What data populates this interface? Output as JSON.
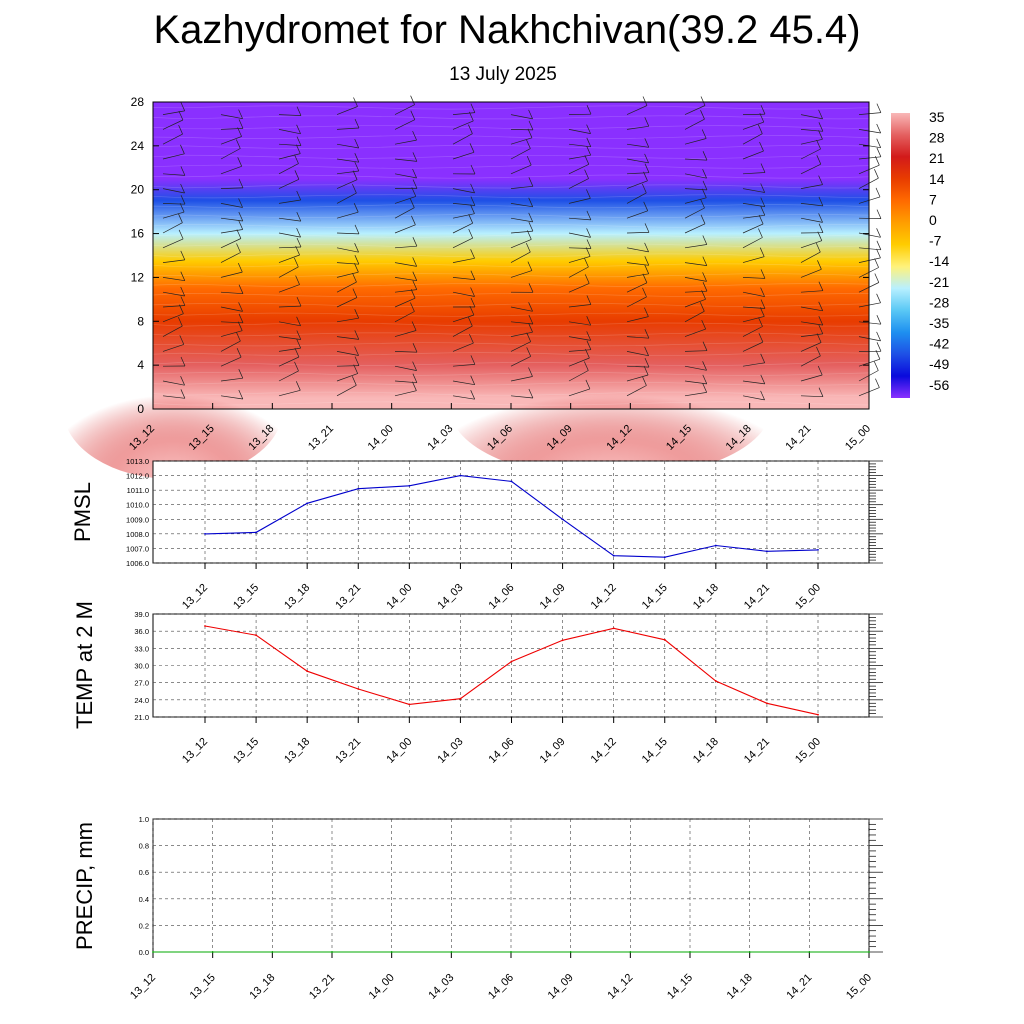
{
  "title": "Kazhydromet for Nakhchivan(39.2 45.4)",
  "subtitle": "13 July 2025",
  "colors": {
    "pmsl_line": "#0000cc",
    "temp_line": "#ee0000",
    "precip_line": "#00aa00",
    "grid": "#444444"
  },
  "chart_data": [
    {
      "type": "heatmap",
      "name": "temperature_cross_section",
      "x": [
        "13_12",
        "13_15",
        "13_18",
        "13_21",
        "14_00",
        "14_03",
        "14_06",
        "14_09",
        "14_12",
        "14_15",
        "14_18",
        "14_21",
        "15_00"
      ],
      "ylim": [
        0,
        28
      ],
      "y_ticks": [
        0,
        4,
        8,
        12,
        16,
        20,
        24,
        28
      ],
      "colorbar_labels": [
        "35",
        "28",
        "21",
        "14",
        "7",
        "0",
        "-7",
        "-14",
        "-21",
        "-28",
        "-35",
        "-42",
        "-49",
        "-56"
      ],
      "colorbar_colors": [
        "#f9b8b8",
        "#e46060",
        "#d21a1a",
        "#e83c00",
        "#ff6a00",
        "#ff9e00",
        "#ffcc00",
        "#fff27a",
        "#b8f0ff",
        "#5ac8f5",
        "#1e90f0",
        "#1e50e6",
        "#0a0adc",
        "#8a30ff"
      ],
      "layers": [
        {
          "height": 1,
          "value": 35
        },
        {
          "height": 4,
          "value": 26
        },
        {
          "height": 8,
          "value": 16
        },
        {
          "height": 11,
          "value": 5
        },
        {
          "height": 13.5,
          "value": -10
        },
        {
          "height": 16,
          "value": -22
        },
        {
          "height": 19,
          "value": -42
        },
        {
          "height": 21,
          "value": -58
        },
        {
          "height": 24,
          "value": -60
        }
      ],
      "wind_barbs": true
    },
    {
      "type": "line",
      "name": "PMSL",
      "ylabel": "PMSL",
      "x": [
        "13_12",
        "13_15",
        "13_18",
        "13_21",
        "14_00",
        "14_03",
        "14_06",
        "14_09",
        "14_12",
        "14_15",
        "14_18",
        "14_21",
        "15_00"
      ],
      "values": [
        1008.0,
        1008.1,
        1010.1,
        1011.1,
        1011.3,
        1012.0,
        1011.6,
        1009.0,
        1006.5,
        1006.4,
        1007.2,
        1006.8,
        1006.9
      ],
      "ylim": [
        1006.0,
        1013.0
      ],
      "y_ticks": [
        "1006.0",
        "1007.0",
        "1008.0",
        "1009.0",
        "1010.0",
        "1011.0",
        "1012.0",
        "1013.0"
      ],
      "grid": true
    },
    {
      "type": "line",
      "name": "TEMP at 2 M",
      "ylabel": "TEMP at 2 M",
      "x": [
        "13_12",
        "13_15",
        "13_18",
        "13_21",
        "14_00",
        "14_03",
        "14_06",
        "14_09",
        "14_12",
        "14_15",
        "14_18",
        "14_21",
        "15_00"
      ],
      "values": [
        36.9,
        35.3,
        29.0,
        25.9,
        23.2,
        24.2,
        30.7,
        34.4,
        36.5,
        34.5,
        27.3,
        23.4,
        21.4
      ],
      "ylim": [
        21.0,
        39.0
      ],
      "y_ticks": [
        "21.0",
        "24.0",
        "27.0",
        "30.0",
        "33.0",
        "36.0",
        "39.0"
      ],
      "grid": true
    },
    {
      "type": "line",
      "name": "PRECIP, mm",
      "ylabel": "PRECIP, mm",
      "x": [
        "13_12",
        "13_15",
        "13_18",
        "13_21",
        "14_00",
        "14_03",
        "14_06",
        "14_09",
        "14_12",
        "14_15",
        "14_18",
        "14_21",
        "15_00"
      ],
      "values": [
        0,
        0,
        0,
        0,
        0,
        0,
        0,
        0,
        0,
        0,
        0,
        0,
        0
      ],
      "ylim": [
        0.0,
        1.0
      ],
      "y_ticks": [
        "0.0",
        "0.2",
        "0.4",
        "0.6",
        "0.8",
        "1.0"
      ],
      "grid": true
    }
  ]
}
